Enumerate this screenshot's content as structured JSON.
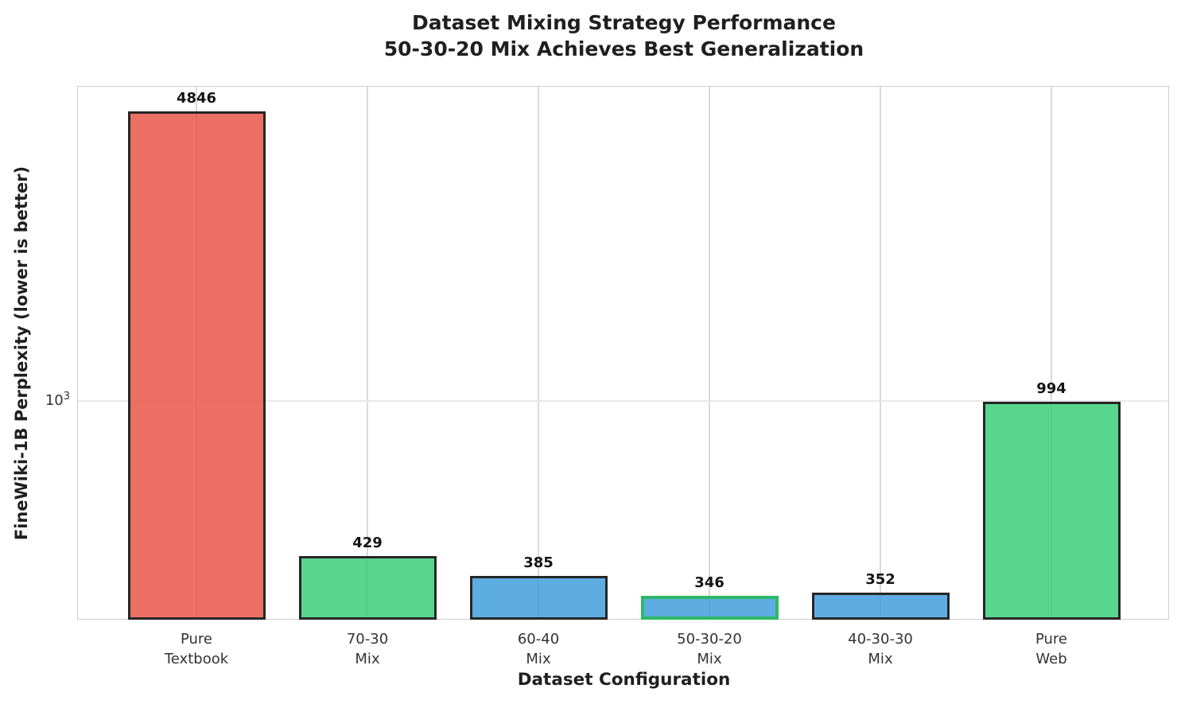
{
  "chart_data": {
    "type": "bar",
    "title_lines": [
      "Dataset Mixing Strategy Performance",
      "50-30-20 Mix Achieves Best Generalization"
    ],
    "xlabel": "Dataset Configuration",
    "ylabel": "FineWiki-1B Perplexity (lower is better)",
    "yscale": "log",
    "ylim": [
      305,
      5500
    ],
    "grid": true,
    "legend": "none",
    "yticks": [
      {
        "base": "10",
        "exp": "3",
        "value": 1000
      }
    ],
    "categories": [
      "Pure Textbook",
      "70-30 Mix",
      "60-40 Mix",
      "50-30-20 Mix",
      "40-30-30 Mix",
      "Pure Web"
    ],
    "fill_alpha": 0.8,
    "colors": {
      "red": "#e74c3c",
      "green": "#2ecc71",
      "blue": "#3498db",
      "edge_default": "#262626",
      "edge_highlight": "#2eb866"
    },
    "bars": [
      {
        "label_lines": [
          "Pure",
          "Textbook"
        ],
        "value": 4846,
        "fill": "#e74c3c",
        "edge": "#262626",
        "highlight": false
      },
      {
        "label_lines": [
          "70-30",
          "Mix"
        ],
        "value": 429,
        "fill": "#2ecc71",
        "edge": "#262626",
        "highlight": false
      },
      {
        "label_lines": [
          "60-40",
          "Mix"
        ],
        "value": 385,
        "fill": "#3498db",
        "edge": "#262626",
        "highlight": false
      },
      {
        "label_lines": [
          "50-30-20",
          "Mix"
        ],
        "value": 346,
        "fill": "#3498db",
        "edge": "#2eb866",
        "highlight": true
      },
      {
        "label_lines": [
          "40-30-30",
          "Mix"
        ],
        "value": 352,
        "fill": "#3498db",
        "edge": "#262626",
        "highlight": false
      },
      {
        "label_lines": [
          "Pure",
          "Web"
        ],
        "value": 994,
        "fill": "#2ecc71",
        "edge": "#262626",
        "highlight": false
      }
    ]
  }
}
